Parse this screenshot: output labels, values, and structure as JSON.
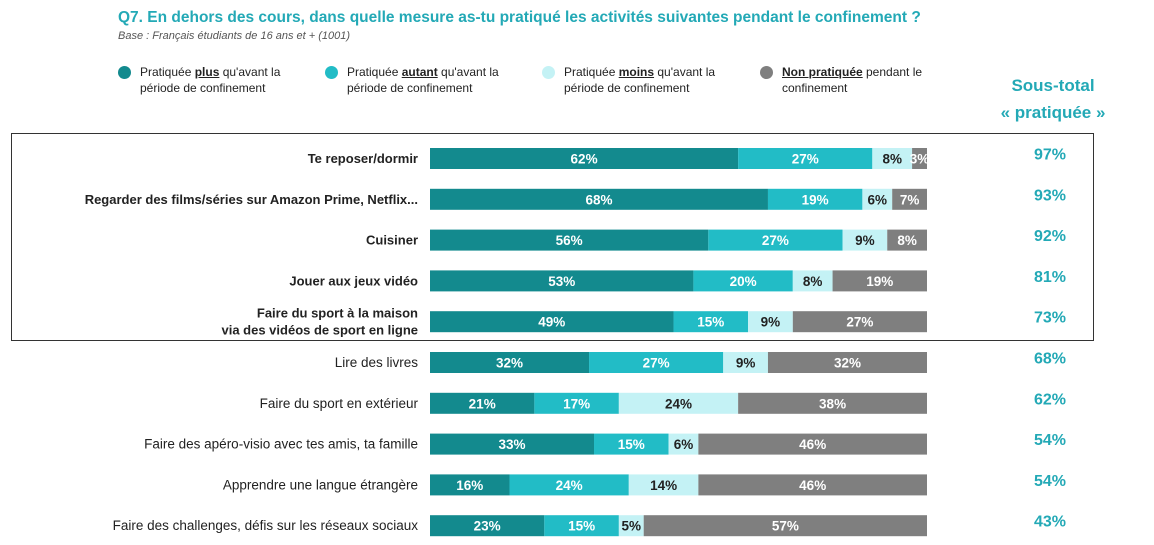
{
  "title": "Q7. En dehors des cours, dans quelle mesure as-tu pratiqué les activités suivantes pendant le confinement ?",
  "subtitle": "Base : Français étudiants de 16 ans et + (1001)",
  "legend": [
    {
      "pre": "Pratiquée ",
      "key": "plus",
      "post": " qu'avant la",
      "line2": "période de confinement",
      "color": "#138a8e"
    },
    {
      "pre": "Pratiquée ",
      "key": "autant",
      "post": " qu'avant la",
      "line2": "période de confinement",
      "color": "#22bcc6"
    },
    {
      "pre": "Pratiquée ",
      "key": "moins",
      "post": " qu'avant la",
      "line2": "période de confinement",
      "color": "#c4f2f5"
    },
    {
      "pre": "",
      "key": "Non pratiquée",
      "post": " pendant le",
      "line2": "confinement",
      "color": "#7f7f7f"
    }
  ],
  "subtotal_header": {
    "line1": "Sous-total",
    "line2": "« pratiquée »"
  },
  "chart_data": {
    "type": "bar",
    "orientation": "horizontal",
    "stacked": true,
    "categories": [
      "Te reposer/dormir",
      "Regarder des films/séries sur Amazon Prime, Netflix...",
      "Cuisiner",
      "Jouer aux jeux vidéo",
      "Faire du sport à la maison\nvia des vidéos de sport en ligne",
      "Lire des livres",
      "Faire du sport en extérieur",
      "Faire des apéro-visio avec tes amis, ta famille",
      "Apprendre une langue étrangère",
      "Faire des challenges, défis sur les réseaux sociaux"
    ],
    "bold_categories": 5,
    "series": [
      {
        "name": "Pratiquée plus qu'avant la période de confinement",
        "color": "#138a8e",
        "label_color": "#ffffff",
        "values": [
          62,
          68,
          56,
          53,
          49,
          32,
          21,
          33,
          16,
          23
        ]
      },
      {
        "name": "Pratiquée autant qu'avant la période de confinement",
        "color": "#22bcc6",
        "label_color": "#ffffff",
        "values": [
          27,
          19,
          27,
          20,
          15,
          27,
          17,
          15,
          24,
          15
        ]
      },
      {
        "name": "Pratiquée moins qu'avant la période de confinement",
        "color": "#c4f2f5",
        "label_color": "#222222",
        "values": [
          8,
          6,
          9,
          8,
          9,
          9,
          24,
          6,
          14,
          5
        ]
      },
      {
        "name": "Non pratiquée pendant le confinement",
        "color": "#7f7f7f",
        "label_color": "#ffffff",
        "values": [
          3,
          7,
          8,
          19,
          27,
          32,
          38,
          46,
          46,
          57
        ]
      }
    ],
    "subtotal": {
      "name": "Sous-total « pratiquée »",
      "color": "#23a9b6",
      "values": [
        97,
        93,
        92,
        81,
        73,
        68,
        62,
        54,
        54,
        43
      ]
    },
    "value_suffix": "%",
    "xlim": [
      0,
      100
    ]
  }
}
